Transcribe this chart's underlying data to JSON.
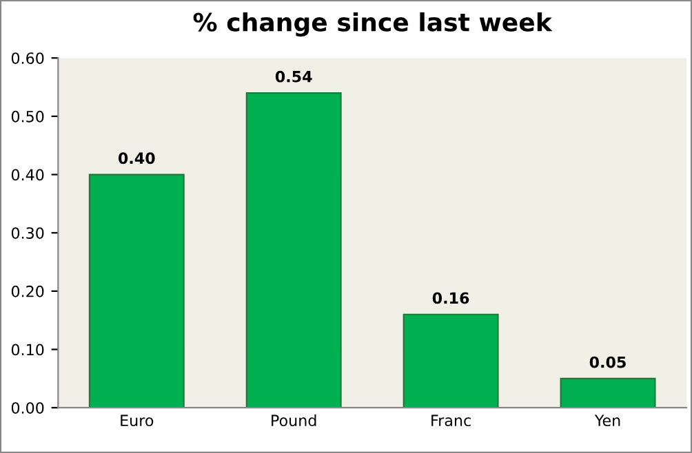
{
  "chart_data": {
    "type": "bar",
    "title": "% change since last week",
    "categories": [
      "Euro",
      "Pound",
      "Franc",
      "Yen"
    ],
    "values": [
      0.4,
      0.54,
      0.16,
      0.05
    ],
    "value_labels": [
      "0.40",
      "0.54",
      "0.16",
      "0.05"
    ],
    "color": "#00b050",
    "ylim": [
      0,
      0.6
    ],
    "yticks": [
      {
        "value": 0,
        "label": "0.00"
      },
      {
        "value": 0.1,
        "label": "0.10"
      },
      {
        "value": 0.2,
        "label": "0.20"
      },
      {
        "value": 0.3,
        "label": "0.30"
      },
      {
        "value": 0.4,
        "label": "0.40"
      },
      {
        "value": 0.5,
        "label": "0.50"
      },
      {
        "value": 0.6,
        "label": "0.60"
      }
    ],
    "grid": false
  }
}
